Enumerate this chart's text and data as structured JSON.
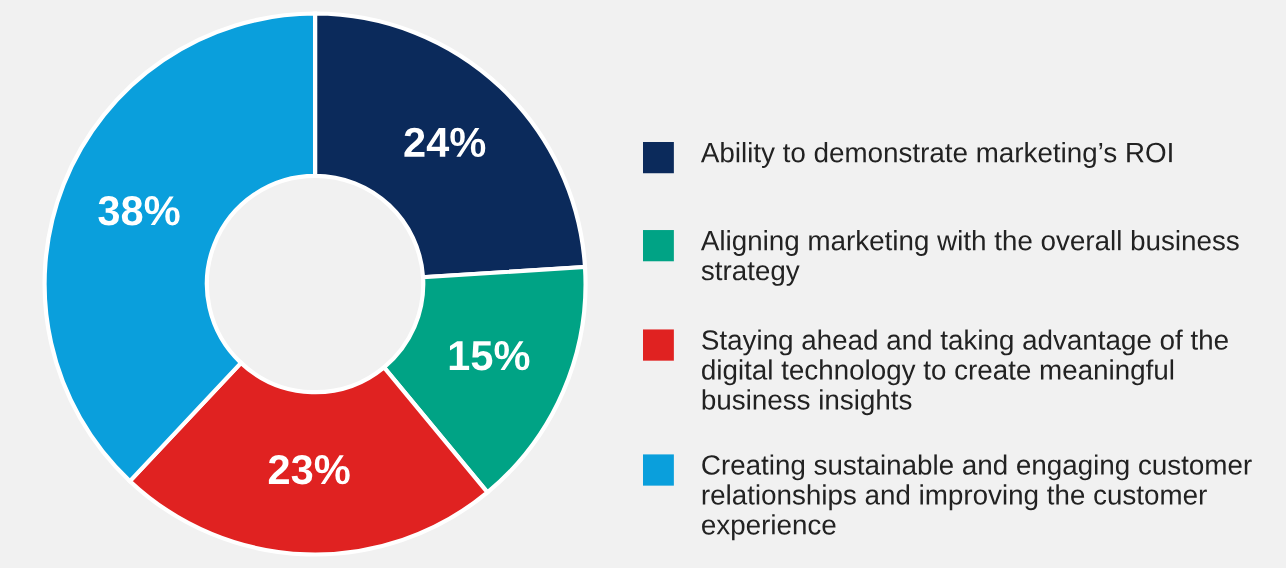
{
  "chart_data": {
    "type": "donut",
    "categories": [
      "Ability to demonstrate marketing’s ROI",
      "Aligning marketing with the overall business strategy",
      "Staying ahead and taking advantage of the digital technology to create meaningful business insights",
      "Creating sustainable and engaging customer relationships and improving the customer experience"
    ],
    "values": [
      24,
      15,
      23,
      38
    ],
    "colors": [
      "#0b2a5b",
      "#00a385",
      "#e02221",
      "#0a9fdc"
    ],
    "value_labels": [
      "24%",
      "15%",
      "23%",
      "38%"
    ],
    "legend": "right"
  }
}
